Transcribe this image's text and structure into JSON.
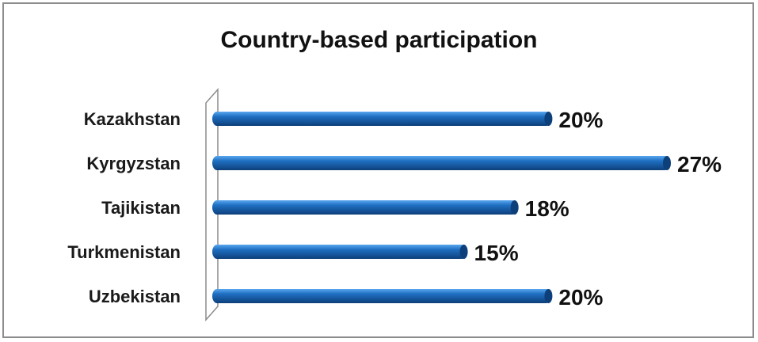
{
  "chart_data": {
    "type": "bar",
    "orientation": "horizontal",
    "title": "Country-based participation",
    "categories": [
      "Kazakhstan",
      "Kyrgyzstan",
      "Tajikistan",
      "Turkmenistan",
      "Uzbekistan"
    ],
    "values": [
      20,
      27,
      18,
      15,
      20
    ],
    "value_labels": [
      "20%",
      "27%",
      "18%",
      "15%",
      "20%"
    ],
    "unit": "%",
    "xlim": [
      0,
      27
    ],
    "bar_color": "#1f6fc2",
    "bar_highlight": "#5aa8ee",
    "bar_shadow": "#0d3f7a",
    "grid": false,
    "legend": "none"
  }
}
